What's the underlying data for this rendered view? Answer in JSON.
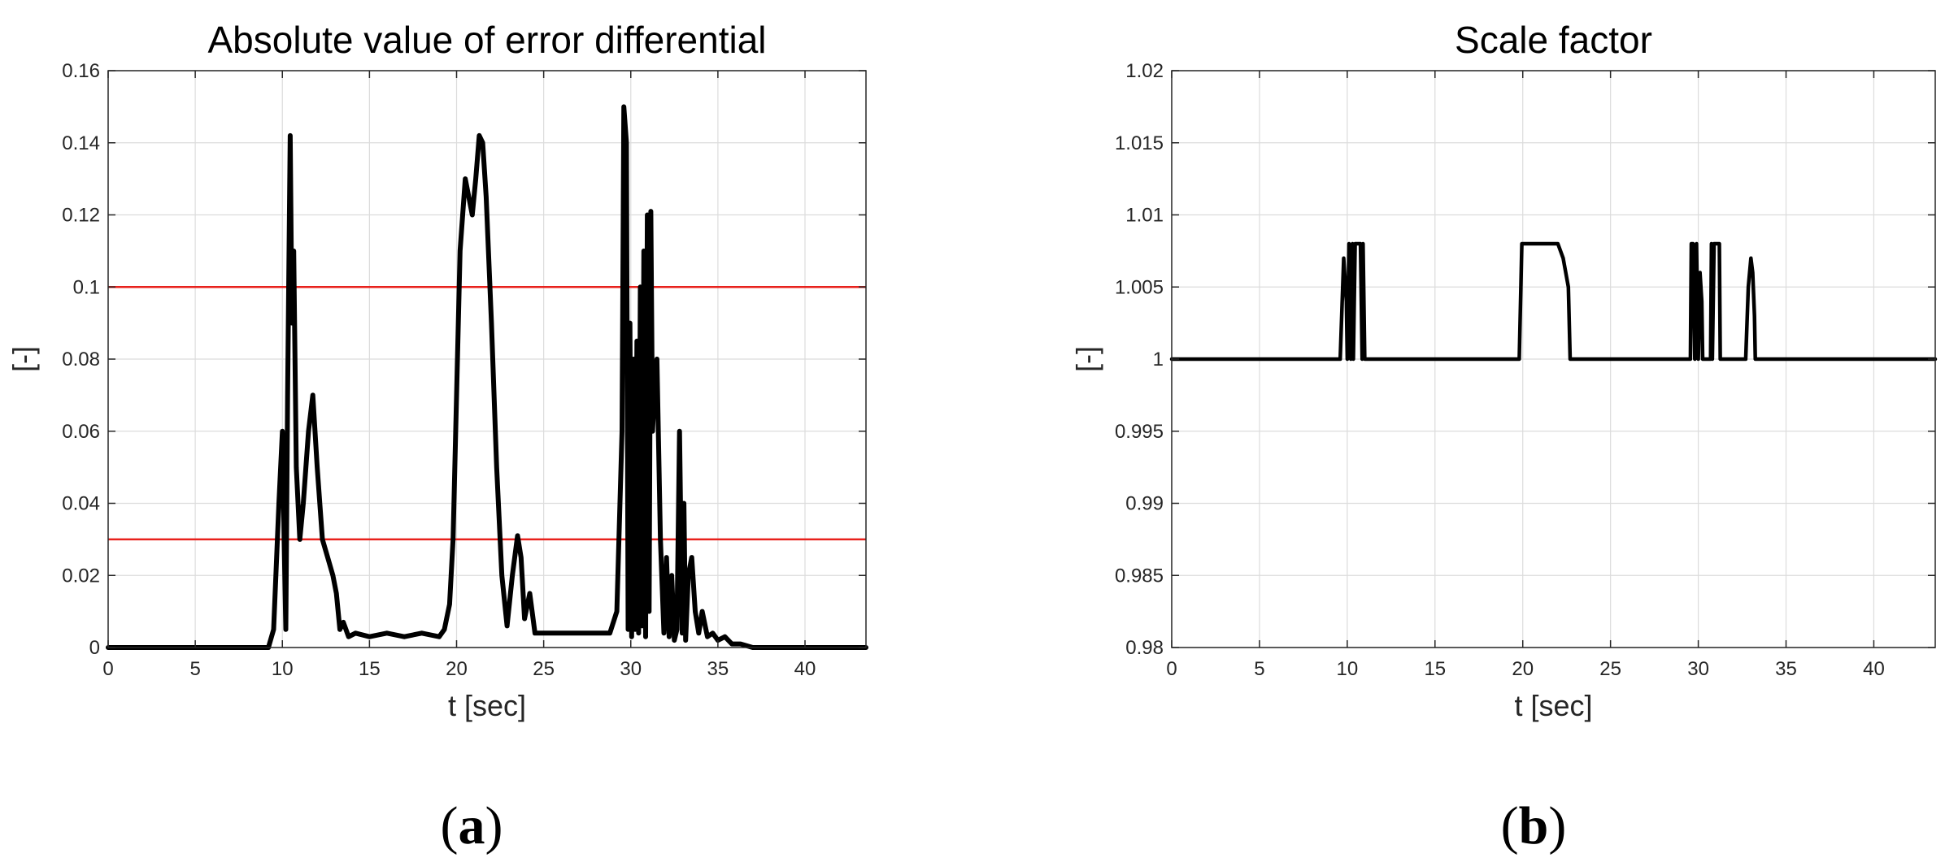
{
  "panels": [
    {
      "label_open": "(",
      "label": "a",
      "label_close": ")"
    },
    {
      "label_open": "(",
      "label": "b",
      "label_close": ")"
    }
  ],
  "chart_data": [
    {
      "type": "line",
      "title": "Absolute value of error differential",
      "xlabel": "t [sec]",
      "ylabel": "[-]",
      "xlim": [
        0,
        43.5
      ],
      "ylim": [
        0,
        0.16
      ],
      "xticks": [
        0,
        5,
        10,
        15,
        20,
        25,
        30,
        35,
        40
      ],
      "yticks": [
        0,
        0.02,
        0.04,
        0.06,
        0.08,
        0.1,
        0.12,
        0.14,
        0.16
      ],
      "xtick_labels": [
        "0",
        "5",
        "10",
        "15",
        "20",
        "25",
        "30",
        "35",
        "40"
      ],
      "ytick_labels": [
        "0",
        "0.02",
        "0.04",
        "0.06",
        "0.08",
        "0.1",
        "0.12",
        "0.14",
        "0.16"
      ],
      "grid": true,
      "line_color": "#000000",
      "hlines": [
        {
          "y": 0.1,
          "color": "#e8211c"
        },
        {
          "y": 0.03,
          "color": "#e8211c"
        }
      ],
      "series": [
        {
          "x": [
            0,
            9.2,
            9.5,
            9.8,
            10.0,
            10.1,
            10.2,
            10.3,
            10.45,
            10.55,
            10.65,
            10.8,
            11.0,
            11.2,
            11.5,
            11.75,
            12.0,
            12.3,
            12.6,
            12.9,
            13.1,
            13.3,
            13.5,
            13.8,
            14.2,
            15.0,
            16.0,
            17.0,
            18.0,
            19.0,
            19.3,
            19.6,
            19.8,
            20.0,
            20.2,
            20.5,
            20.7,
            20.9,
            21.1,
            21.3,
            21.5,
            21.7,
            22.0,
            22.3,
            22.6,
            22.9,
            23.2,
            23.5,
            23.7,
            23.9,
            24.2,
            24.5,
            25.0,
            26.0,
            27.0,
            28.0,
            28.8,
            29.2,
            29.5,
            29.6,
            29.75,
            29.85,
            29.95,
            30.05,
            30.15,
            30.25,
            30.35,
            30.45,
            30.55,
            30.65,
            30.75,
            30.85,
            30.95,
            31.05,
            31.15,
            31.25,
            31.35,
            31.5,
            31.7,
            31.9,
            32.05,
            32.2,
            32.35,
            32.5,
            32.65,
            32.8,
            32.95,
            33.05,
            33.15,
            33.3,
            33.5,
            33.7,
            33.9,
            34.1,
            34.4,
            34.7,
            35.0,
            35.4,
            35.8,
            36.3,
            37.0,
            38.0,
            39.0,
            40.0,
            41.0,
            42.0,
            43.5
          ],
          "y": [
            0,
            0,
            0.005,
            0.04,
            0.06,
            0.03,
            0.005,
            0.07,
            0.142,
            0.09,
            0.11,
            0.05,
            0.03,
            0.04,
            0.06,
            0.07,
            0.05,
            0.03,
            0.025,
            0.02,
            0.015,
            0.005,
            0.007,
            0.003,
            0.004,
            0.003,
            0.004,
            0.003,
            0.004,
            0.003,
            0.005,
            0.012,
            0.03,
            0.07,
            0.11,
            0.13,
            0.125,
            0.12,
            0.13,
            0.142,
            0.14,
            0.125,
            0.09,
            0.05,
            0.02,
            0.006,
            0.02,
            0.031,
            0.025,
            0.008,
            0.015,
            0.004,
            0.004,
            0.004,
            0.004,
            0.004,
            0.004,
            0.01,
            0.06,
            0.15,
            0.14,
            0.005,
            0.09,
            0.003,
            0.08,
            0.005,
            0.085,
            0.004,
            0.1,
            0.006,
            0.11,
            0.003,
            0.12,
            0.01,
            0.121,
            0.06,
            0.07,
            0.08,
            0.03,
            0.004,
            0.025,
            0.003,
            0.02,
            0.002,
            0.005,
            0.06,
            0.004,
            0.04,
            0.002,
            0.02,
            0.025,
            0.01,
            0.004,
            0.01,
            0.003,
            0.004,
            0.002,
            0.003,
            0.001,
            0.001,
            0,
            0,
            0,
            0,
            0,
            0,
            0
          ]
        }
      ]
    },
    {
      "type": "line",
      "title": "Scale factor",
      "xlabel": "t [sec]",
      "ylabel": "[-]",
      "xlim": [
        0,
        43.5
      ],
      "ylim": [
        0.98,
        1.02
      ],
      "xticks": [
        0,
        5,
        10,
        15,
        20,
        25,
        30,
        35,
        40
      ],
      "yticks": [
        0.98,
        0.985,
        0.99,
        0.995,
        1,
        1.005,
        1.01,
        1.015,
        1.02
      ],
      "xtick_labels": [
        "0",
        "5",
        "10",
        "15",
        "20",
        "25",
        "30",
        "35",
        "40"
      ],
      "ytick_labels": [
        "0.98",
        "0.985",
        "0.99",
        "0.995",
        "1",
        "1.005",
        "1.01",
        "1.015",
        "1.02"
      ],
      "grid": true,
      "line_color": "#000000",
      "series": [
        {
          "x": [
            0,
            9.6,
            9.8,
            9.95,
            10.0,
            10.1,
            10.2,
            10.3,
            10.35,
            10.45,
            10.55,
            10.65,
            10.75,
            10.85,
            10.9,
            11.0,
            19.8,
            19.95,
            20.1,
            22.0,
            22.3,
            22.6,
            22.7,
            29.55,
            29.6,
            29.7,
            29.8,
            29.9,
            30.0,
            30.1,
            30.2,
            30.25,
            30.35,
            30.5,
            30.7,
            30.75,
            30.8,
            30.9,
            31.0,
            31.1,
            31.2,
            31.25,
            32.7,
            32.85,
            33.0,
            33.1,
            33.2,
            33.25,
            43.5
          ],
          "y": [
            1,
            1,
            1.007,
            1.004,
            1,
            1.008,
            1,
            1.008,
            1,
            1.008,
            1.008,
            1.008,
            1.008,
            1,
            1.008,
            1,
            1,
            1.008,
            1.008,
            1.008,
            1.007,
            1.005,
            1,
            1,
            1.008,
            1.008,
            1,
            1.008,
            1,
            1.006,
            1.004,
            1,
            1,
            1,
            1,
            1.008,
            1,
            1.008,
            1.008,
            1.008,
            1.008,
            1,
            1,
            1.005,
            1.007,
            1.006,
            1.003,
            1,
            1
          ]
        }
      ]
    }
  ]
}
